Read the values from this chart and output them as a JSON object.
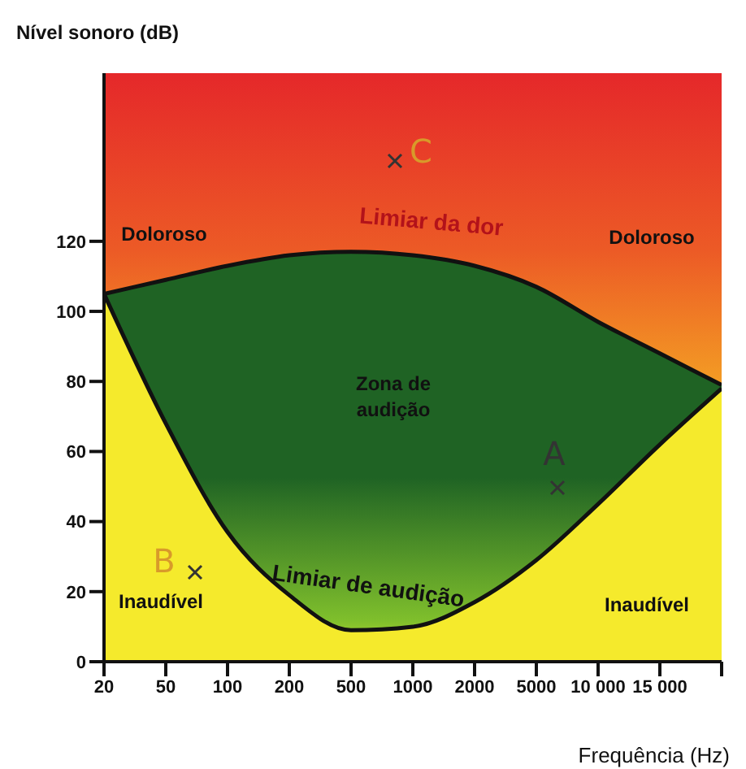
{
  "chart_data": {
    "type": "area",
    "ylabel": "Nível sonoro (dB)",
    "xlabel": "Frequência (Hz)",
    "categories": [
      "20",
      "50",
      "100",
      "200",
      "500",
      "1000",
      "2000",
      "5000",
      "10 000",
      "15 000",
      null
    ],
    "ylim": [
      0,
      168
    ],
    "yticks": [
      0,
      20,
      40,
      60,
      80,
      100,
      120
    ],
    "series": [
      {
        "name": "Limiar da dor",
        "color": "#1f6324",
        "values": [
          105,
          109,
          113,
          116,
          117,
          116,
          113,
          107,
          97,
          88,
          79
        ]
      },
      {
        "name": "Limiar de audição",
        "color": "#f5ea2c",
        "values": [
          105,
          68,
          37,
          19,
          9,
          10,
          17,
          29,
          45,
          62,
          78
        ]
      }
    ],
    "annotations": [
      "Doloroso",
      "Doloroso",
      "Inaudível",
      "Inaudível",
      "Zona de audição",
      "A",
      "B",
      "C"
    ]
  }
}
